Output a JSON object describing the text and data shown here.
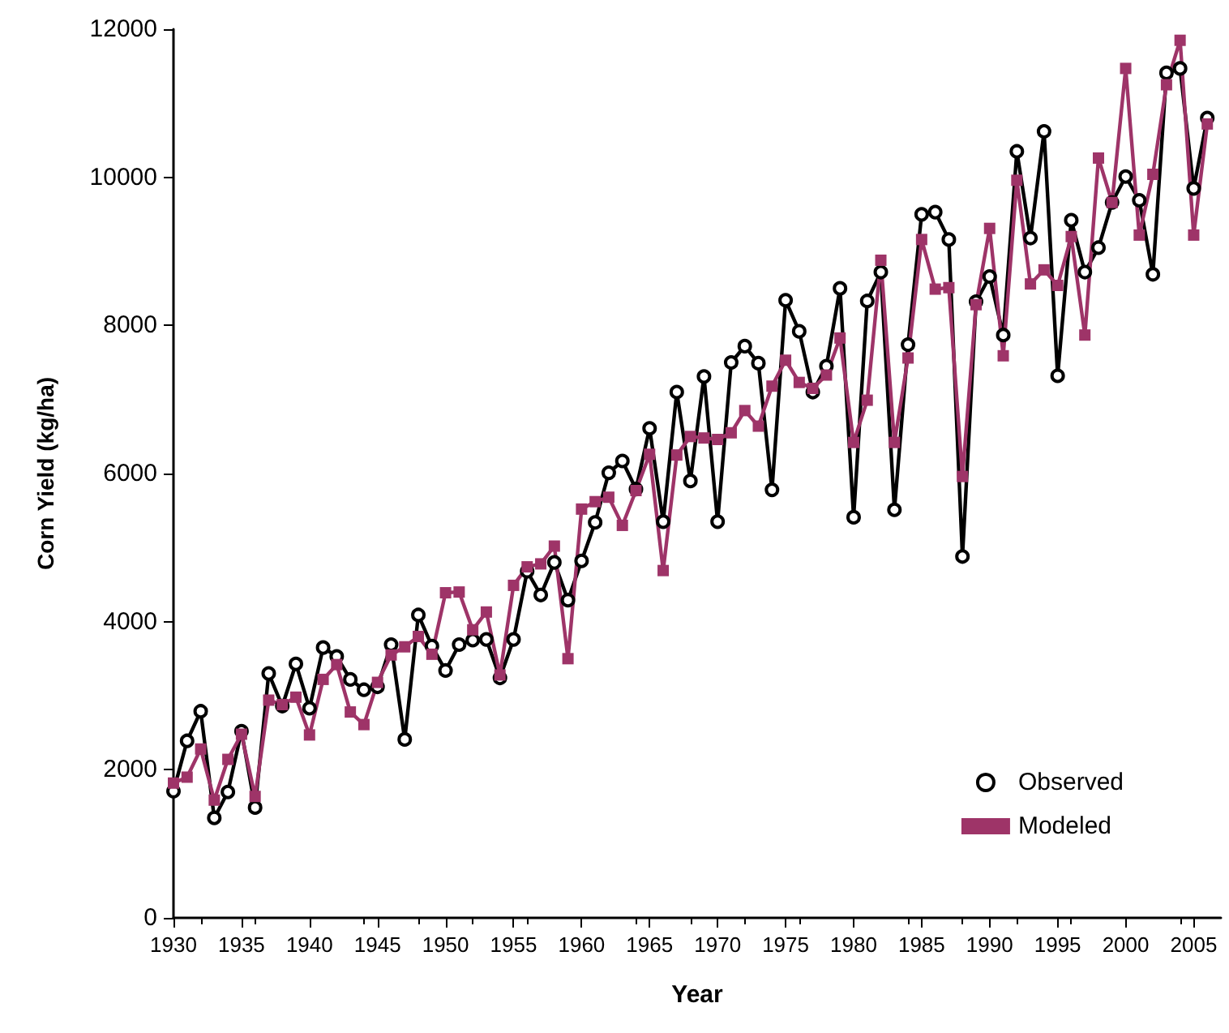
{
  "chart_data": {
    "type": "line",
    "xlabel": "Year",
    "ylabel": "Corn Yield (kg/ha)",
    "x": [
      1930,
      1931,
      1932,
      1933,
      1934,
      1935,
      1936,
      1937,
      1938,
      1939,
      1940,
      1941,
      1942,
      1943,
      1944,
      1945,
      1946,
      1947,
      1948,
      1949,
      1950,
      1951,
      1952,
      1953,
      1954,
      1955,
      1956,
      1957,
      1958,
      1959,
      1960,
      1961,
      1962,
      1963,
      1964,
      1965,
      1966,
      1967,
      1968,
      1969,
      1970,
      1971,
      1972,
      1973,
      1974,
      1975,
      1976,
      1977,
      1978,
      1979,
      1980,
      1981,
      1982,
      1983,
      1984,
      1985,
      1986,
      1987,
      1988,
      1989,
      1990,
      1991,
      1992,
      1993,
      1994,
      1995,
      1996,
      1997,
      1998,
      1999,
      2000,
      2001,
      2002,
      2003,
      2004,
      2005,
      2006
    ],
    "series": [
      {
        "name": "Observed",
        "color": "#000000",
        "marker": "circle",
        "values": [
          1710,
          2390,
          2790,
          1350,
          1700,
          2520,
          1490,
          3300,
          2860,
          3430,
          2830,
          3650,
          3530,
          3220,
          3080,
          3120,
          3690,
          2410,
          4090,
          3670,
          3340,
          3690,
          3750,
          3760,
          3240,
          3760,
          4680,
          4360,
          4800,
          4290,
          4820,
          5340,
          6010,
          6170,
          5790,
          6610,
          5350,
          7100,
          5900,
          7310,
          5350,
          7500,
          7720,
          7490,
          5780,
          8340,
          7920,
          7100,
          7450,
          8500,
          5410,
          8330,
          8720,
          5510,
          7740,
          9500,
          9530,
          9160,
          4880,
          8320,
          8660,
          7870,
          10350,
          9180,
          10620,
          7320,
          9420,
          8720,
          9050,
          9660,
          10010,
          9690,
          8690,
          11410,
          11470,
          9850,
          10800
        ]
      },
      {
        "name": "Modeled",
        "color": "#9e3468",
        "marker": "square",
        "values": [
          1820,
          1900,
          2280,
          1590,
          2140,
          2480,
          1640,
          2940,
          2880,
          2980,
          2470,
          3220,
          3420,
          2780,
          2610,
          3180,
          3550,
          3660,
          3800,
          3560,
          4390,
          4400,
          3890,
          4130,
          3280,
          4490,
          4740,
          4780,
          5020,
          3500,
          5520,
          5620,
          5680,
          5300,
          5770,
          6260,
          4690,
          6250,
          6500,
          6480,
          6460,
          6550,
          6850,
          6640,
          7180,
          7530,
          7230,
          7150,
          7330,
          7830,
          6420,
          6990,
          8880,
          6420,
          7560,
          9160,
          8490,
          8510,
          5960,
          8280,
          9310,
          7590,
          9960,
          8560,
          8750,
          8540,
          9200,
          7870,
          10260,
          9660,
          11470,
          9220,
          10040,
          11250,
          11850,
          9220,
          10720
        ]
      }
    ],
    "xlim": [
      1930,
      2007
    ],
    "xticks": [
      1930,
      1935,
      1940,
      1945,
      1950,
      1955,
      1960,
      1965,
      1970,
      1975,
      1980,
      1985,
      1990,
      1995,
      2000,
      2005
    ],
    "ylim": [
      0,
      12000
    ],
    "yticks": [
      0,
      2000,
      4000,
      6000,
      8000,
      10000,
      12000
    ],
    "grid": false,
    "legend": "bottom right",
    "line_style": "solid"
  }
}
